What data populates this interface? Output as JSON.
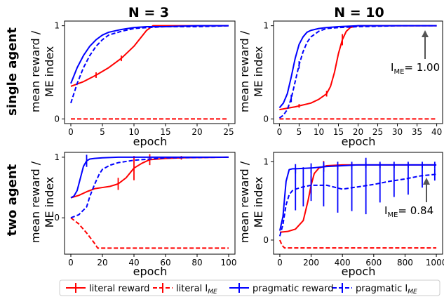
{
  "figure": {
    "col_titles": [
      "N = 3",
      "N = 10"
    ],
    "row_titles": [
      "single agent",
      "two agent"
    ],
    "ylabel": [
      "mean reward /",
      "ME index"
    ],
    "xlabel": "epoch",
    "annotations": [
      {
        "panel": 1,
        "base": "I",
        "sub": "ME",
        "rest": "= 1.00"
      },
      {
        "panel": 3,
        "base": "I",
        "sub": "ME",
        "rest": "= 0.84"
      }
    ]
  },
  "legend": {
    "items": [
      {
        "label": "literal reward",
        "sub": "",
        "color": "#ff0000",
        "dash": false
      },
      {
        "label": "literal I",
        "sub": "ME",
        "color": "#ff0000",
        "dash": true
      },
      {
        "label": "pragmatic reward",
        "sub": "",
        "color": "#0000ff",
        "dash": false
      },
      {
        "label": "pragmatic I",
        "sub": "ME",
        "color": "#0000ff",
        "dash": true
      }
    ]
  },
  "chart_data": [
    {
      "type": "line",
      "panel": "N = 3, single agent",
      "xlabel": "epoch",
      "ylabel": "mean reward / ME index",
      "xlim": [
        -1,
        26
      ],
      "ylim": [
        -0.05,
        1.05
      ],
      "xticks": [
        0,
        5,
        10,
        15,
        20,
        25
      ],
      "yticks": [
        0,
        1
      ],
      "series": [
        {
          "name": "literal reward",
          "color": "#ff0000",
          "dash": false,
          "x": [
            0,
            2,
            4,
            6,
            8,
            10,
            12,
            13,
            25
          ],
          "y": [
            0.35,
            0.4,
            0.47,
            0.55,
            0.65,
            0.78,
            0.95,
            1.0,
            1.0
          ],
          "err": [
            {
              "x": 4,
              "y": 0.47,
              "e": 0.03
            },
            {
              "x": 8,
              "y": 0.65,
              "e": 0.03
            }
          ]
        },
        {
          "name": "literal I_ME",
          "color": "#ff0000",
          "dash": true,
          "x": [
            0,
            25
          ],
          "y": [
            0.0,
            0.0
          ]
        },
        {
          "name": "pragmatic reward",
          "color": "#0000ff",
          "dash": false,
          "x": [
            0,
            1,
            2,
            3,
            4,
            5,
            6,
            8,
            10,
            12,
            15,
            20,
            25
          ],
          "y": [
            0.38,
            0.55,
            0.68,
            0.78,
            0.85,
            0.9,
            0.93,
            0.96,
            0.98,
            0.99,
            0.99,
            1.0,
            1.0
          ]
        },
        {
          "name": "pragmatic I_ME",
          "color": "#0000ff",
          "dash": true,
          "x": [
            0,
            1,
            2,
            3,
            4,
            5,
            6,
            8,
            10,
            12,
            15,
            20,
            25
          ],
          "y": [
            0.17,
            0.38,
            0.55,
            0.68,
            0.78,
            0.85,
            0.9,
            0.94,
            0.97,
            0.98,
            0.99,
            0.99,
            1.0
          ]
        }
      ]
    },
    {
      "type": "line",
      "panel": "N = 10, single agent",
      "xlabel": "epoch",
      "ylabel": "mean reward / ME index",
      "xlim": [
        -1.5,
        41.5
      ],
      "ylim": [
        -0.05,
        1.05
      ],
      "xticks": [
        0,
        5,
        10,
        15,
        20,
        25,
        30,
        35,
        40
      ],
      "yticks": [
        0,
        1
      ],
      "series": [
        {
          "name": "literal reward",
          "color": "#ff0000",
          "dash": false,
          "x": [
            0,
            4,
            8,
            10,
            12,
            13,
            14,
            15,
            16,
            17,
            18,
            20,
            25,
            40
          ],
          "y": [
            0.1,
            0.13,
            0.17,
            0.21,
            0.27,
            0.35,
            0.5,
            0.7,
            0.85,
            0.94,
            0.98,
            1.0,
            1.0,
            1.0
          ],
          "err": [
            {
              "x": 5,
              "y": 0.14,
              "e": 0.02
            },
            {
              "x": 12,
              "y": 0.27,
              "e": 0.03
            },
            {
              "x": 16,
              "y": 0.85,
              "e": 0.06
            }
          ]
        },
        {
          "name": "literal I_ME",
          "color": "#ff0000",
          "dash": true,
          "x": [
            0,
            40
          ],
          "y": [
            0.0,
            0.0
          ]
        },
        {
          "name": "pragmatic reward",
          "color": "#0000ff",
          "dash": false,
          "x": [
            0,
            1,
            2,
            3,
            4,
            5,
            6,
            7,
            8,
            10,
            12,
            15,
            20,
            30,
            40
          ],
          "y": [
            0.12,
            0.17,
            0.27,
            0.45,
            0.65,
            0.8,
            0.88,
            0.93,
            0.95,
            0.97,
            0.98,
            0.99,
            1.0,
            1.0,
            1.0
          ]
        },
        {
          "name": "pragmatic I_ME",
          "color": "#0000ff",
          "dash": true,
          "x": [
            0,
            1,
            2,
            3,
            4,
            5,
            6,
            7,
            8,
            10,
            12,
            15,
            20,
            30,
            40
          ],
          "y": [
            0.01,
            0.04,
            0.1,
            0.22,
            0.4,
            0.58,
            0.72,
            0.82,
            0.88,
            0.94,
            0.97,
            0.98,
            0.99,
            1.0,
            1.0
          ],
          "err": [
            {
              "x": 3,
              "y": 0.22,
              "e": 0.04
            },
            {
              "x": 5,
              "y": 0.58,
              "e": 0.04
            }
          ]
        }
      ]
    },
    {
      "type": "line",
      "panel": "N = 3, two agent",
      "xlabel": "epoch",
      "ylabel": "mean reward / ME index",
      "xlim": [
        -4,
        104
      ],
      "ylim": [
        -0.6,
        1.08
      ],
      "xticks": [
        0,
        20,
        40,
        60,
        80,
        100
      ],
      "yticks": [
        0,
        1
      ],
      "series": [
        {
          "name": "literal reward",
          "color": "#ff0000",
          "dash": false,
          "x": [
            0,
            5,
            10,
            15,
            20,
            25,
            30,
            35,
            40,
            45,
            50,
            60,
            70,
            100
          ],
          "y": [
            0.33,
            0.37,
            0.43,
            0.48,
            0.5,
            0.52,
            0.56,
            0.66,
            0.82,
            0.9,
            0.96,
            0.98,
            0.99,
            1.0
          ],
          "err": [
            {
              "x": 30,
              "y": 0.56,
              "e": 0.1
            },
            {
              "x": 40,
              "y": 0.82,
              "e": 0.2
            },
            {
              "x": 50,
              "y": 0.96,
              "e": 0.09
            },
            {
              "x": 70,
              "y": 0.99,
              "e": 0.03
            }
          ]
        },
        {
          "name": "literal I_ME",
          "color": "#ff0000",
          "dash": true,
          "x": [
            0,
            5,
            10,
            15,
            17,
            100
          ],
          "y": [
            0.0,
            -0.1,
            -0.25,
            -0.42,
            -0.5,
            -0.5
          ]
        },
        {
          "name": "pragmatic reward",
          "color": "#0000ff",
          "dash": false,
          "x": [
            0,
            2,
            4,
            6,
            8,
            10,
            12,
            15,
            20,
            30,
            50,
            100
          ],
          "y": [
            0.33,
            0.36,
            0.45,
            0.65,
            0.85,
            0.94,
            0.97,
            0.98,
            0.99,
            1.0,
            1.0,
            1.0
          ],
          "err": [
            {
              "x": 10,
              "y": 0.94,
              "e": 0.1
            }
          ]
        },
        {
          "name": "pragmatic I_ME",
          "color": "#0000ff",
          "dash": true,
          "x": [
            0,
            5,
            10,
            12,
            15,
            18,
            20,
            25,
            30,
            40,
            50,
            60,
            100
          ],
          "y": [
            0.0,
            0.05,
            0.18,
            0.35,
            0.55,
            0.72,
            0.8,
            0.87,
            0.91,
            0.95,
            0.97,
            0.99,
            1.0
          ]
        }
      ]
    },
    {
      "type": "line",
      "panel": "N = 10, two agent",
      "xlabel": "epoch",
      "ylabel": "mean reward / ME index",
      "xlim": [
        -40,
        1040
      ],
      "ylim": [
        -0.18,
        1.12
      ],
      "xticks": [
        0,
        200,
        400,
        600,
        800,
        1000
      ],
      "yticks": [
        0,
        1
      ],
      "series": [
        {
          "name": "literal reward",
          "color": "#ff0000",
          "dash": false,
          "x": [
            0,
            50,
            100,
            150,
            180,
            200,
            220,
            250,
            300,
            400,
            500,
            700,
            1000
          ],
          "y": [
            0.1,
            0.11,
            0.14,
            0.25,
            0.5,
            0.7,
            0.85,
            0.92,
            0.95,
            0.96,
            0.96,
            0.96,
            0.96
          ],
          "err": [
            {
              "x": 200,
              "y": 0.7,
              "e": 0.12
            },
            {
              "x": 280,
              "y": 0.94,
              "e": 0.07
            }
          ]
        },
        {
          "name": "literal I_ME",
          "color": "#ff0000",
          "dash": true,
          "x": [
            0,
            15,
            30,
            1000
          ],
          "y": [
            0.0,
            -0.07,
            -0.1,
            -0.1
          ]
        },
        {
          "name": "pragmatic reward",
          "color": "#0000ff",
          "dash": false,
          "x": [
            0,
            20,
            40,
            60,
            80,
            100,
            200,
            300,
            400,
            500,
            600,
            800,
            1000
          ],
          "y": [
            0.12,
            0.3,
            0.75,
            0.9,
            0.91,
            0.91,
            0.92,
            0.94,
            0.95,
            0.96,
            0.96,
            0.96,
            0.96
          ],
          "err": [
            {
              "x": 100,
              "y": 0.91,
              "e": 0.06
            },
            {
              "x": 200,
              "y": 0.92,
              "e": 0.06
            },
            {
              "x": 280,
              "y": 0.94,
              "e": 0.06
            },
            {
              "x": 370,
              "y": 0.95,
              "e": 0.05
            },
            {
              "x": 460,
              "y": 0.95,
              "e": 0.05
            },
            {
              "x": 550,
              "y": 0.96,
              "e": 0.04
            },
            {
              "x": 640,
              "y": 0.96,
              "e": 0.04
            },
            {
              "x": 730,
              "y": 0.96,
              "e": 0.04
            },
            {
              "x": 820,
              "y": 0.96,
              "e": 0.04
            },
            {
              "x": 910,
              "y": 0.96,
              "e": 0.04
            },
            {
              "x": 990,
              "y": 0.96,
              "e": 0.04
            }
          ]
        },
        {
          "name": "pragmatic I_ME",
          "color": "#0000ff",
          "dash": true,
          "x": [
            0,
            20,
            40,
            60,
            80,
            100,
            150,
            200,
            300,
            400,
            500,
            600,
            700,
            800,
            900,
            1000
          ],
          "y": [
            0.05,
            0.2,
            0.45,
            0.58,
            0.63,
            0.65,
            0.68,
            0.7,
            0.7,
            0.65,
            0.68,
            0.71,
            0.75,
            0.78,
            0.82,
            0.84
          ],
          "err": [
            {
              "x": 100,
              "y": 0.65,
              "e": 0.27
            },
            {
              "x": 150,
              "y": 0.68,
              "e": 0.25
            },
            {
              "x": 200,
              "y": 0.7,
              "e": 0.2
            },
            {
              "x": 280,
              "y": 0.7,
              "e": 0.27
            },
            {
              "x": 370,
              "y": 0.65,
              "e": 0.3
            },
            {
              "x": 460,
              "y": 0.67,
              "e": 0.3
            },
            {
              "x": 550,
              "y": 0.69,
              "e": 0.36
            },
            {
              "x": 640,
              "y": 0.73,
              "e": 0.25
            },
            {
              "x": 730,
              "y": 0.75,
              "e": 0.2
            },
            {
              "x": 820,
              "y": 0.78,
              "e": 0.2
            },
            {
              "x": 910,
              "y": 0.82,
              "e": 0.15
            },
            {
              "x": 990,
              "y": 0.84,
              "e": 0.08
            }
          ]
        }
      ]
    }
  ]
}
